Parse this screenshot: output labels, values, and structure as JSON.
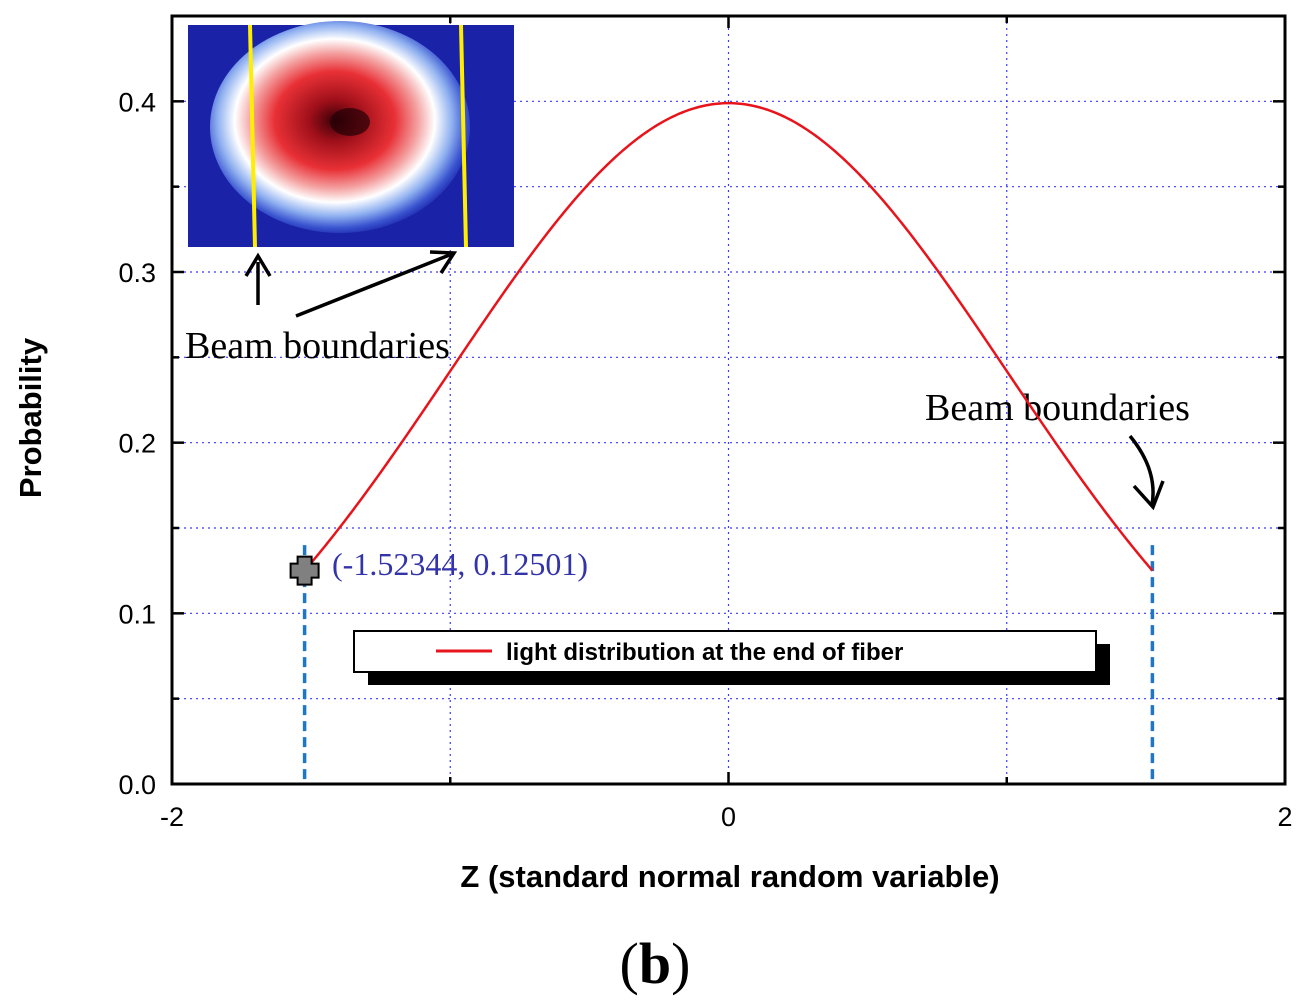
{
  "chart_data": {
    "type": "line",
    "xlabel": "Z (standard normal random variable)",
    "ylabel": "Probability",
    "xlim": [
      -2,
      2
    ],
    "ylim": [
      0,
      0.45
    ],
    "x_ticks": [
      -2,
      0,
      2
    ],
    "x_tick_labels": [
      "-2",
      "0",
      "2"
    ],
    "x_minor_grid": [
      -1,
      1
    ],
    "y_ticks": [
      0.0,
      0.1,
      0.2,
      0.3,
      0.4
    ],
    "y_tick_labels": [
      "0.0",
      "0.1",
      "0.2",
      "0.3",
      "0.4"
    ],
    "y_minor_grid": [
      0.05,
      0.15,
      0.25,
      0.35
    ],
    "grid": true,
    "series": [
      {
        "name": "light distribution at  the end of fiber",
        "color": "#e8141c",
        "function": "standard normal pdf",
        "x_start": -1.52344,
        "x_end": 1.52344,
        "y_at_bounds": 0.12501,
        "y_peak": 0.3989
      }
    ],
    "boundaries": [
      {
        "x": -1.52344,
        "y_top": 0.14,
        "color": "#1f77c4"
      },
      {
        "x": 1.52344,
        "y_top": 0.14,
        "color": "#1f77c4"
      }
    ],
    "marker": {
      "x": -1.52344,
      "y": 0.12501,
      "shape": "plus"
    },
    "annotations": {
      "coord_label": "(-1.52344, 0.12501)",
      "beam_left": "Beam boundaries",
      "beam_right": "Beam boundaries"
    },
    "legend": {
      "label": "light distribution at  the end of fiber",
      "placement": "bottom-center"
    },
    "inset": {
      "description": "beam intensity heatmap",
      "line_color": "#ffee00"
    },
    "panel_label": "(b)"
  },
  "colors": {
    "curve": "#e8141c",
    "boundary": "#1f77c4",
    "grid": "#3a3aff",
    "coord_text": "#3333aa",
    "inset_bg": "#1a22a8",
    "inset_line": "#ffee00"
  }
}
